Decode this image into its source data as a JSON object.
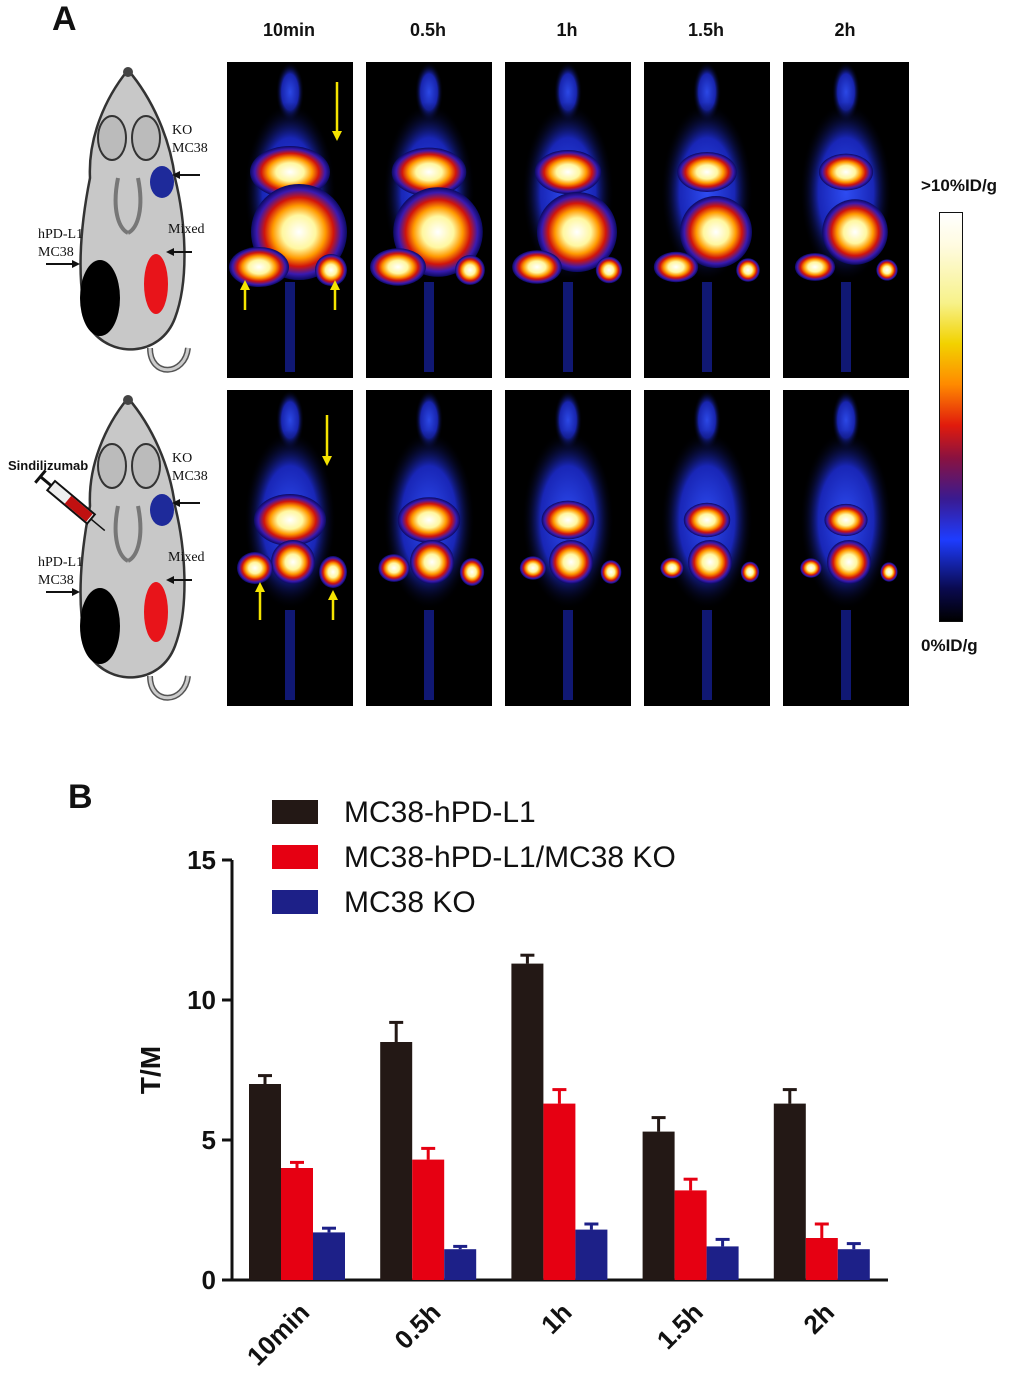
{
  "panel_a": {
    "letter": "A",
    "time_labels": [
      "10min",
      "0.5h",
      "1h",
      "1.5h",
      "2h"
    ],
    "schematic_top": {
      "ko_line1": "KO",
      "ko_line2": "MC38",
      "hpd_line1": "hPD-L1",
      "hpd_line2": "MC38",
      "mixed": "Mixed"
    },
    "schematic_bottom": {
      "injection_label": "Sindilizumab",
      "ko_line1": "KO",
      "ko_line2": "MC38",
      "hpd_line1": "hPD-L1",
      "hpd_line2": "MC38",
      "mixed": "Mixed"
    },
    "colorbar": {
      "max_label": ">10%ID/g",
      "min_label": "0%ID/g"
    },
    "colors": {
      "hpd_tumor": "#000000",
      "mixed_tumor": "#e8141a",
      "ko_tumor": "#1e2a9a",
      "arrow": "#f5e400"
    }
  },
  "panel_b": {
    "letter": "B"
  },
  "chart_data": {
    "type": "bar",
    "ylabel": "T/M",
    "xlabel": "",
    "ylim": [
      0,
      15
    ],
    "yticks": [
      0,
      5,
      10,
      15
    ],
    "categories": [
      "10min",
      "0.5h",
      "1h",
      "1.5h",
      "2h"
    ],
    "legend_position": "top-left",
    "series": [
      {
        "name": "MC38-hPD-L1",
        "color": "#231815",
        "values": [
          7.0,
          8.5,
          11.3,
          5.3,
          6.3
        ],
        "errors": [
          0.3,
          0.7,
          0.3,
          0.5,
          0.5
        ]
      },
      {
        "name": "MC38-hPD-L1/MC38 KO",
        "color": "#e60012",
        "values": [
          4.0,
          4.3,
          6.3,
          3.2,
          1.5
        ],
        "errors": [
          0.2,
          0.4,
          0.5,
          0.4,
          0.5
        ]
      },
      {
        "name": "MC38 KO",
        "color": "#1d2088",
        "values": [
          1.7,
          1.1,
          1.8,
          1.2,
          1.1
        ],
        "errors": [
          0.15,
          0.1,
          0.2,
          0.25,
          0.2
        ]
      }
    ]
  }
}
